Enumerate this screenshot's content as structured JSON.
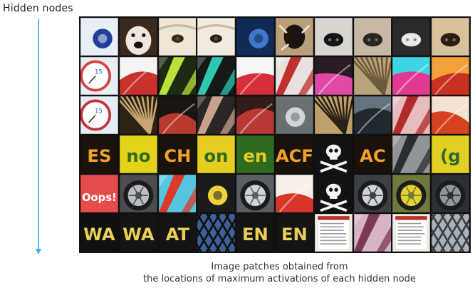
{
  "axis_label": "Hidden nodes",
  "caption": {
    "line1": "Image patches obtained from",
    "line2": "the locations of maximum activations of each hidden node"
  },
  "colors": {
    "arrow": "#3fa9e6",
    "grid_border": "#111111"
  },
  "patch_rows": [
    [
      {
        "subject": "blue-circle-on-white",
        "bg": "#e8eef6",
        "fg": "#1f3f9a",
        "kind": "circle"
      },
      {
        "subject": "dog-face-dark",
        "bg": "#3b2a1e",
        "fg": "#efe6dc",
        "kind": "face"
      },
      {
        "subject": "dog-eye-white-fur",
        "bg": "#efe6d6",
        "fg": "#3a2a1c",
        "kind": "eye"
      },
      {
        "subject": "dog-eye-white-fur",
        "bg": "#f2ebe2",
        "fg": "#2a2018",
        "kind": "eye"
      },
      {
        "subject": "blue-ring",
        "bg": "#0f2a55",
        "fg": "#3f78c9",
        "kind": "circle"
      },
      {
        "subject": "dark-hole-ornament",
        "bg": "#b9a07a",
        "fg": "#1c140f",
        "kind": "hole"
      },
      {
        "subject": "dog-nose",
        "bg": "#d9d5cf",
        "fg": "#141414",
        "kind": "nose"
      },
      {
        "subject": "dog-nose-fur",
        "bg": "#c8b8a4",
        "fg": "#2a2522",
        "kind": "nose"
      },
      {
        "subject": "dog-nose-black",
        "bg": "#2a2a2a",
        "fg": "#e9e9e9",
        "kind": "nose"
      },
      {
        "subject": "dog-nose-tan",
        "bg": "#d8c29c",
        "fg": "#2b1d12",
        "kind": "nose"
      }
    ],
    [
      {
        "subject": "clock-face-red",
        "bg": "#e8eef2",
        "fg": "#d64040",
        "kind": "clock"
      },
      {
        "subject": "red-white-curve",
        "bg": "#f3f3f3",
        "fg": "#c9322a",
        "kind": "curve"
      },
      {
        "subject": "green-yellow-shards",
        "bg": "#1d2a12",
        "fg": "#b9e23a",
        "kind": "shards"
      },
      {
        "subject": "teal-yellow-leaf",
        "bg": "#131a18",
        "fg": "#2ec8b1",
        "kind": "shards"
      },
      {
        "subject": "red-shape-white",
        "bg": "#f5f5f5",
        "fg": "#d72f3a",
        "kind": "curve"
      },
      {
        "subject": "red-white-stripes",
        "bg": "#e7e2de",
        "fg": "#c22f2f",
        "kind": "shards"
      },
      {
        "subject": "pink-petals",
        "bg": "#2a1b26",
        "fg": "#e04aa6",
        "kind": "curve"
      },
      {
        "subject": "woven-basket",
        "bg": "#b8a37a",
        "fg": "#6e5a3a",
        "kind": "rays"
      },
      {
        "subject": "pink-cyan",
        "bg": "#3fd3e6",
        "fg": "#e03a93",
        "kind": "curve"
      },
      {
        "subject": "orange-red-curve",
        "bg": "#f3a13a",
        "fg": "#c93220",
        "kind": "curve"
      }
    ],
    [
      {
        "subject": "clock-face-15",
        "bg": "#e3edf3",
        "fg": "#c6313b",
        "kind": "clock"
      },
      {
        "subject": "tan-woven",
        "bg": "#2d2214",
        "fg": "#c9a770",
        "kind": "rays"
      },
      {
        "subject": "dark-red-curve",
        "bg": "#1a1614",
        "fg": "#b73a2c",
        "kind": "curve"
      },
      {
        "subject": "metallic-ribbon",
        "bg": "#2a2626",
        "fg": "#caa18a",
        "kind": "shards"
      },
      {
        "subject": "red-fruit",
        "bg": "#331b18",
        "fg": "#b93a35",
        "kind": "curve"
      },
      {
        "subject": "silver-loop",
        "bg": "#6a6f74",
        "fg": "#cfd5d9",
        "kind": "circle"
      },
      {
        "subject": "woven-fan",
        "bg": "#c0a06a",
        "fg": "#2a2116",
        "kind": "rays"
      },
      {
        "subject": "grey-blue-swirl",
        "bg": "#63737f",
        "fg": "#202830",
        "kind": "curve"
      },
      {
        "subject": "pink-red-stick",
        "bg": "#e6bcbc",
        "fg": "#b22a2a",
        "kind": "shards"
      },
      {
        "subject": "red-orange-arc",
        "bg": "#f4e2d3",
        "fg": "#d4431e",
        "kind": "curve"
      }
    ],
    [
      {
        "subject": "orange-ES-letters",
        "bg": "#1a120b",
        "fg": "#f0a12b",
        "kind": "text",
        "text": "ES"
      },
      {
        "subject": "green-on-yellow-text",
        "bg": "#e5d21b",
        "fg": "#2d6b1d",
        "kind": "text",
        "text": "no"
      },
      {
        "subject": "orange-CH-letters",
        "bg": "#1a120b",
        "fg": "#f0a12b",
        "kind": "text",
        "text": "CH"
      },
      {
        "subject": "green-on-yellow-text",
        "bg": "#e6cd21",
        "fg": "#2f6b1f",
        "kind": "text",
        "text": "on"
      },
      {
        "subject": "green-on-yellow-text",
        "bg": "#2f6b1f",
        "fg": "#e6cd21",
        "kind": "text",
        "text": "en"
      },
      {
        "subject": "orange-ACF-letters",
        "bg": "#1a120b",
        "fg": "#f0a12b",
        "kind": "text",
        "text": "ACF"
      },
      {
        "subject": "skull-crossbones",
        "bg": "#121212",
        "fg": "#f5f5f5",
        "kind": "skull"
      },
      {
        "subject": "orange-AC-letters",
        "bg": "#1a120b",
        "fg": "#f0a12b",
        "kind": "text",
        "text": "AC"
      },
      {
        "subject": "chrome-car-part",
        "bg": "#8f9499",
        "fg": "#2a2e33",
        "kind": "shards"
      },
      {
        "subject": "yellow-green-logo",
        "bg": "#e2cf23",
        "fg": "#2a6a2a",
        "kind": "text",
        "text": "(g"
      }
    ],
    [
      {
        "subject": "oops-sticker",
        "bg": "#e74c4c",
        "fg": "#ffffff",
        "kind": "text",
        "text": "Oops!"
      },
      {
        "subject": "grey-tire",
        "bg": "#4a4c4f",
        "fg": "#b9bec4",
        "kind": "wheel"
      },
      {
        "subject": "red-cyan-shapes",
        "bg": "#55c6de",
        "fg": "#d93a2a",
        "kind": "shards"
      },
      {
        "subject": "egg-yolk",
        "bg": "#1b1b1b",
        "fg": "#f0d23a",
        "kind": "circle"
      },
      {
        "subject": "car-wheel",
        "bg": "#5a5f66",
        "fg": "#cfd3d6",
        "kind": "wheel"
      },
      {
        "subject": "red-orange-curve",
        "bg": "#f6efe8",
        "fg": "#d8362b",
        "kind": "curve"
      },
      {
        "subject": "skull-crossbones",
        "bg": "#121212",
        "fg": "#f5f5f5",
        "kind": "skull"
      },
      {
        "subject": "car-wheel",
        "bg": "#3c4045",
        "fg": "#cfd3d6",
        "kind": "wheel"
      },
      {
        "subject": "yellow-wheel",
        "bg": "#6f7a3a",
        "fg": "#e6d22d",
        "kind": "wheel"
      },
      {
        "subject": "dark-tire",
        "bg": "#2c2f33",
        "fg": "#8f969c",
        "kind": "wheel"
      }
    ],
    [
      {
        "subject": "yellow-black-WA",
        "bg": "#111111",
        "fg": "#e8cf55",
        "kind": "text",
        "text": "WA"
      },
      {
        "subject": "yellow-black-WA",
        "bg": "#151515",
        "fg": "#e8cf55",
        "kind": "text",
        "text": "WA"
      },
      {
        "subject": "yellow-black-AT",
        "bg": "#141414",
        "fg": "#e8cf55",
        "kind": "text",
        "text": "AT"
      },
      {
        "subject": "blue-lattice",
        "bg": "#3d5f9a",
        "fg": "#0f0f0f",
        "kind": "lattice"
      },
      {
        "subject": "yellow-black-EN",
        "bg": "#141414",
        "fg": "#e8cf55",
        "kind": "text",
        "text": "EN"
      },
      {
        "subject": "yellow-black-EN",
        "bg": "#141414",
        "fg": "#e8cf55",
        "kind": "text",
        "text": "EN"
      },
      {
        "subject": "document-page",
        "bg": "#f4efe5",
        "fg": "#b8302a",
        "kind": "doc"
      },
      {
        "subject": "pink-cloth",
        "bg": "#d8b3c6",
        "fg": "#7a3a55",
        "kind": "shards"
      },
      {
        "subject": "document-page",
        "bg": "#f1ede4",
        "fg": "#b8302a",
        "kind": "doc"
      },
      {
        "subject": "grey-building",
        "bg": "#a9b2b9",
        "fg": "#3a3f44",
        "kind": "lattice"
      }
    ]
  ]
}
